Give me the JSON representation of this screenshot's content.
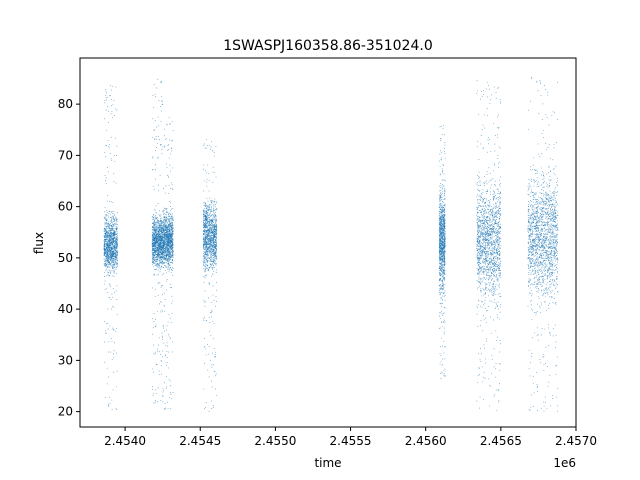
{
  "chart_data": {
    "type": "scatter",
    "title": "1SWASPJ160358.86-351024.0",
    "xlabel": "time",
    "ylabel": "flux",
    "x_offset_label": "1e6",
    "x_scale": 1000000,
    "xlim": [
      2.4537,
      2.457
    ],
    "ylim": [
      17,
      89
    ],
    "x_ticks": [
      {
        "value": 2.454,
        "label": "2.4540"
      },
      {
        "value": 2.4545,
        "label": "2.4545"
      },
      {
        "value": 2.455,
        "label": "2.4550"
      },
      {
        "value": 2.4555,
        "label": "2.4555"
      },
      {
        "value": 2.456,
        "label": "2.4560"
      },
      {
        "value": 2.4565,
        "label": "2.4565"
      },
      {
        "value": 2.457,
        "label": "2.4570"
      }
    ],
    "y_ticks": [
      {
        "value": 20,
        "label": "20"
      },
      {
        "value": 30,
        "label": "30"
      },
      {
        "value": 40,
        "label": "40"
      },
      {
        "value": 50,
        "label": "50"
      },
      {
        "value": 60,
        "label": "60"
      },
      {
        "value": 70,
        "label": "70"
      },
      {
        "value": 80,
        "label": "80"
      }
    ],
    "grid": false,
    "series": [
      {
        "color": "#1f77b4",
        "segments": [
          {
            "x_start": 2.45386,
            "x_end": 2.45395,
            "core_low": 45,
            "core_high": 60,
            "min": 20,
            "max": 84
          },
          {
            "x_start": 2.45418,
            "x_end": 2.45425,
            "core_low": 46,
            "core_high": 60,
            "min": 20,
            "max": 85
          },
          {
            "x_start": 2.45425,
            "x_end": 2.45432,
            "core_low": 46,
            "core_high": 61,
            "min": 20,
            "max": 78
          },
          {
            "x_start": 2.45452,
            "x_end": 2.45461,
            "core_low": 45,
            "core_high": 63,
            "min": 20,
            "max": 74
          },
          {
            "x_start": 2.45609,
            "x_end": 2.45613,
            "core_low": 40,
            "core_high": 67,
            "min": 26,
            "max": 76
          },
          {
            "x_start": 2.45634,
            "x_end": 2.4565,
            "core_low": 38,
            "core_high": 68,
            "min": 20,
            "max": 85
          },
          {
            "x_start": 2.45668,
            "x_end": 2.45688,
            "core_low": 38,
            "core_high": 70,
            "min": 20,
            "max": 86
          }
        ]
      }
    ]
  }
}
